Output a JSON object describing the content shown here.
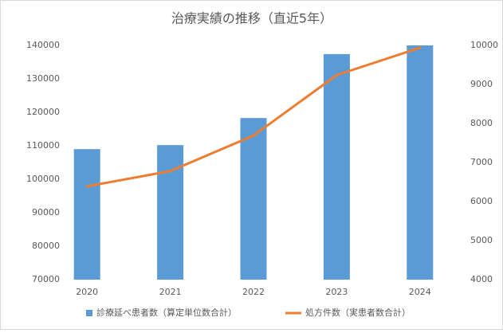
{
  "chart_data": {
    "type": "bar",
    "title": "治療実績の推移（直近5年）",
    "categories": [
      "2020",
      "2021",
      "2022",
      "2023",
      "2024"
    ],
    "series": [
      {
        "name": "診療延べ患者数（算定単位数合計）",
        "type": "bar",
        "color": "#5b9bd5",
        "values": [
          109000,
          110200,
          118300,
          137400,
          140000
        ]
      },
      {
        "name": "処方件数（実患者数合計）",
        "type": "line",
        "axis": "y2",
        "color": "#ed7d31",
        "values": [
          6390,
          6780,
          7690,
          9240,
          9940
        ]
      }
    ],
    "ylim": [
      70000,
      140000
    ],
    "yticks": [
      70000,
      80000,
      90000,
      100000,
      110000,
      120000,
      130000,
      140000
    ],
    "y2lim": [
      4000,
      10000
    ],
    "y2ticks": [
      4000,
      5000,
      6000,
      7000,
      8000,
      9000,
      10000
    ],
    "grid": false,
    "legend": "bottom"
  }
}
